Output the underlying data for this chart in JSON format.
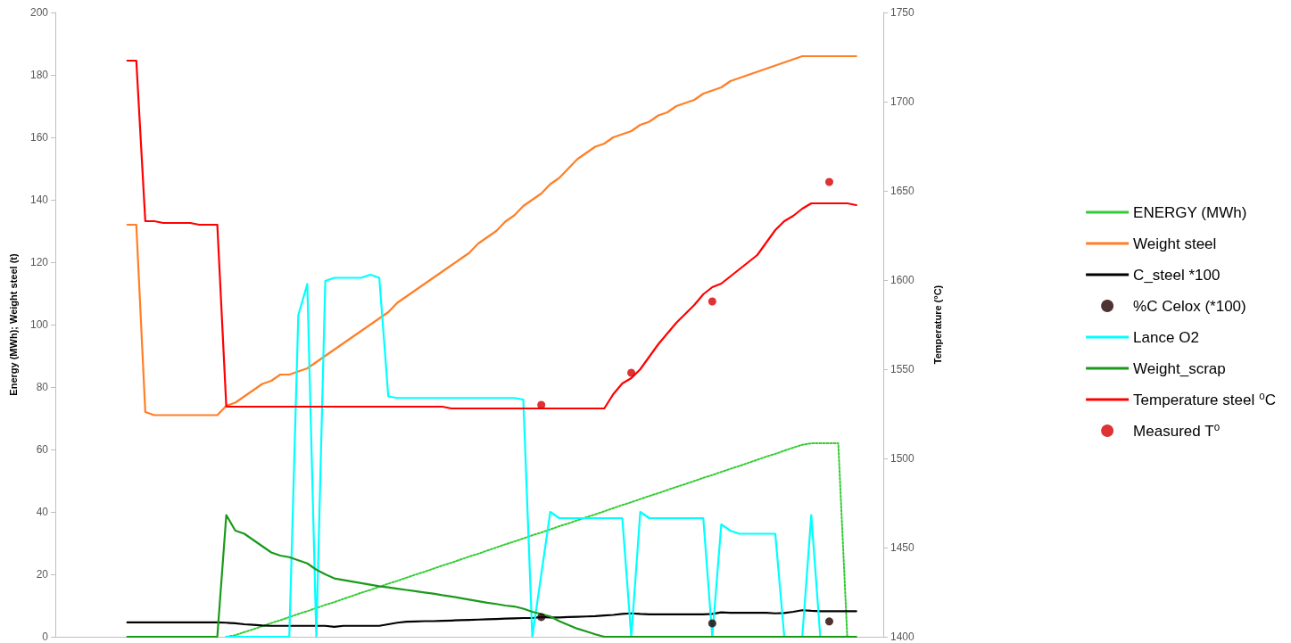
{
  "chart_data": {
    "type": "line",
    "ylabel": "Energy (MWh); Weight steel (t)",
    "y2label": "Temperature (°C)",
    "ylim": [
      0,
      200
    ],
    "yticks": [
      0,
      20,
      40,
      60,
      80,
      100,
      120,
      140,
      160,
      180,
      200
    ],
    "y2lim": [
      1400,
      1750
    ],
    "y2ticks": [
      1400,
      1450,
      1500,
      1550,
      1600,
      1650,
      1700,
      1750
    ],
    "grid": false,
    "legend": "right",
    "tick_labels": "y",
    "marker": "none",
    "categories": [
      null,
      null,
      null,
      null,
      null,
      null,
      null,
      null,
      null,
      null,
      null,
      null,
      null,
      null,
      null,
      null,
      null,
      null,
      null,
      null,
      null,
      null,
      null,
      null,
      null,
      null,
      null,
      null,
      null,
      null,
      null,
      null,
      null,
      null,
      null,
      null,
      null,
      null,
      null,
      null,
      null,
      null,
      null,
      null,
      null,
      null,
      null,
      null,
      null,
      null,
      null,
      null,
      null,
      null,
      null,
      null,
      null,
      null,
      null,
      null,
      null,
      null,
      null,
      null,
      null,
      null,
      null,
      null,
      null,
      null,
      null,
      null,
      null,
      null,
      null,
      null,
      null,
      null,
      null,
      null,
      null,
      null,
      null,
      null,
      null,
      null,
      null,
      null,
      null,
      null,
      null,
      null,
      null
    ],
    "series": [
      {
        "name": "ENERGY (MWh)",
        "line_style": "dotted",
        "color": "#33cc33",
        "values": [
          null,
          null,
          null,
          null,
          null,
          null,
          null,
          null,
          null,
          null,
          null,
          null,
          null,
          null,
          null,
          null,
          null,
          null,
          null,
          0,
          0.5,
          1.5,
          2.4,
          3.4,
          4.4,
          5.3,
          6.3,
          7.3,
          8.2,
          9.2,
          10.2,
          11.1,
          12.1,
          13.1,
          14.1,
          15,
          16,
          17,
          17.9,
          18.9,
          19.9,
          20.8,
          21.8,
          22.8,
          23.7,
          24.7,
          25.7,
          26.6,
          27.6,
          28.6,
          29.6,
          30.5,
          31.5,
          32.5,
          33.4,
          34.4,
          35.4,
          36.3,
          37.3,
          38.3,
          39.2,
          40.2,
          41.2,
          42.2,
          43.1,
          44.1,
          45.1,
          46,
          47,
          48,
          48.9,
          49.9,
          50.9,
          51.8,
          52.8,
          53.8,
          54.7,
          55.7,
          56.7,
          57.7,
          58.6,
          59.6,
          60.6,
          61.5,
          62,
          62,
          62,
          62,
          0,
          null,
          null,
          null,
          null
        ]
      },
      {
        "name": "Weight steel",
        "color": "#ff7f27",
        "values": [
          null,
          null,
          null,
          null,
          null,
          null,
          null,
          null,
          132,
          132,
          72,
          71,
          71,
          71,
          71,
          71,
          71,
          71,
          71,
          74,
          75,
          77,
          79,
          81,
          82,
          84,
          84,
          85,
          86,
          88,
          90,
          92,
          94,
          96,
          98,
          100,
          102,
          104,
          107,
          109,
          111,
          113,
          115,
          117,
          119,
          121,
          123,
          126,
          128,
          130,
          133,
          135,
          138,
          140,
          142,
          145,
          147,
          150,
          153,
          155,
          157,
          158,
          160,
          161,
          162,
          164,
          165,
          167,
          168,
          170,
          171,
          172,
          174,
          175,
          176,
          178,
          179,
          180,
          181,
          182,
          183,
          184,
          185,
          186,
          186,
          186,
          186,
          186,
          186,
          186,
          null,
          null,
          null
        ]
      },
      {
        "name": "C_steel *100",
        "color": "#000000",
        "values": [
          null,
          null,
          null,
          null,
          null,
          null,
          null,
          null,
          4.6,
          4.6,
          4.6,
          4.6,
          4.6,
          4.6,
          4.6,
          4.6,
          4.6,
          4.6,
          4.6,
          4.5,
          4.3,
          4,
          3.8,
          3.6,
          3.5,
          3.5,
          3.5,
          3.5,
          3.5,
          3.5,
          3.5,
          3.2,
          3.5,
          3.5,
          3.5,
          3.5,
          3.5,
          4,
          4.5,
          4.8,
          4.9,
          5,
          5,
          5.1,
          5.2,
          5.3,
          5.4,
          5.5,
          5.6,
          5.7,
          5.8,
          5.9,
          6,
          6,
          6.3,
          6.2,
          6.2,
          6.3,
          6.4,
          6.5,
          6.6,
          6.8,
          7,
          7.3,
          7.5,
          7.3,
          7.2,
          7.2,
          7.2,
          7.2,
          7.2,
          7.2,
          7.2,
          7.3,
          7.8,
          7.7,
          7.7,
          7.7,
          7.7,
          7.7,
          7.5,
          7.6,
          8,
          8.5,
          8.3,
          8.2,
          8.2,
          8.2,
          8.2,
          8.2,
          null,
          null,
          null
        ]
      },
      {
        "name": "%C Celox (*100)",
        "type": "scatter",
        "marker": "circle",
        "color": "#200000",
        "values": [
          null,
          null,
          null,
          null,
          null,
          null,
          null,
          null,
          null,
          null,
          null,
          null,
          null,
          null,
          null,
          null,
          null,
          null,
          null,
          null,
          null,
          null,
          null,
          null,
          null,
          null,
          null,
          null,
          null,
          null,
          null,
          null,
          null,
          null,
          null,
          null,
          null,
          null,
          null,
          null,
          null,
          null,
          null,
          null,
          null,
          null,
          null,
          null,
          null,
          null,
          null,
          null,
          null,
          null,
          6.3,
          null,
          null,
          null,
          null,
          null,
          null,
          null,
          null,
          null,
          null,
          null,
          null,
          null,
          null,
          null,
          null,
          null,
          null,
          4.3,
          null,
          null,
          null,
          null,
          null,
          null,
          null,
          null,
          null,
          null,
          null,
          null,
          4.9,
          null,
          null,
          null,
          null,
          null,
          null
        ]
      },
      {
        "name": "Lance O2",
        "color": "#00ffff",
        "values": [
          null,
          null,
          null,
          null,
          null,
          null,
          null,
          null,
          null,
          null,
          null,
          null,
          null,
          null,
          null,
          null,
          null,
          null,
          null,
          0,
          0,
          0,
          0,
          0,
          0,
          0,
          0,
          103,
          113,
          0,
          114,
          115,
          115,
          115,
          115,
          116,
          115,
          77,
          76.5,
          76.5,
          76.5,
          76.5,
          76.5,
          76.5,
          76.5,
          76.5,
          76.5,
          76.5,
          76.5,
          76.5,
          76.5,
          76.5,
          76,
          0,
          20,
          40,
          38,
          38,
          38,
          38,
          38,
          38,
          38,
          38,
          0,
          40,
          38,
          38,
          38,
          38,
          38,
          38,
          38,
          0,
          36,
          34,
          33,
          33,
          33,
          33,
          33,
          0,
          0,
          0,
          39,
          0,
          null,
          null,
          null,
          null,
          null,
          null,
          null
        ]
      },
      {
        "name": "Weight_scrap",
        "color": "#1a9a1a",
        "values": [
          null,
          null,
          null,
          null,
          null,
          null,
          null,
          null,
          0,
          0,
          0,
          0,
          0,
          0,
          0,
          0,
          0,
          0,
          0,
          39,
          34,
          33,
          31,
          29,
          27,
          26,
          25.5,
          24.5,
          23.5,
          21.5,
          20,
          18.7,
          18.2,
          17.7,
          17.2,
          16.7,
          16.2,
          15.8,
          15.4,
          15,
          14.6,
          14.2,
          13.8,
          13.3,
          12.9,
          12.4,
          11.9,
          11.4,
          10.9,
          10.5,
          10,
          9.7,
          9,
          8,
          7.3,
          6.5,
          5,
          3.8,
          2.6,
          1.7,
          0.8,
          0,
          0,
          0,
          0,
          0,
          0,
          0,
          0,
          0,
          0,
          0,
          0,
          0,
          0,
          0,
          0,
          0,
          0,
          0,
          0,
          0,
          0,
          0,
          0,
          0,
          0,
          0,
          0,
          0,
          null,
          null,
          null
        ]
      },
      {
        "name": "Temperature steel ⁰C",
        "axis": "y2",
        "color": "#ff0000",
        "values": [
          null,
          null,
          null,
          null,
          null,
          null,
          null,
          null,
          1723,
          1723,
          1633,
          1633,
          1632,
          1632,
          1632,
          1632,
          1631,
          1631,
          1631,
          1529,
          1529,
          1529,
          1529,
          1529,
          1529,
          1529,
          1529,
          1529,
          1529,
          1529,
          1529,
          1529,
          1529,
          1529,
          1529,
          1529,
          1529,
          1529,
          1529,
          1529,
          1529,
          1529,
          1529,
          1529,
          1528,
          1528,
          1528,
          1528,
          1528,
          1528,
          1528,
          1528,
          1528,
          1528,
          1528,
          1528,
          1528,
          1528,
          1528,
          1528,
          1528,
          1528,
          1536,
          1542,
          1545,
          1550,
          1557,
          1564,
          1570,
          1576,
          1581,
          1586,
          1592,
          1596,
          1598,
          1602,
          1606,
          1610,
          1614,
          1621,
          1628,
          1633,
          1636,
          1640,
          1643,
          1643,
          1643,
          1643,
          1643,
          1642,
          null,
          null,
          null
        ]
      },
      {
        "name": "Measured T⁰",
        "type": "scatter",
        "axis": "y2",
        "marker": "circle",
        "color": "#d40000",
        "values": [
          null,
          null,
          null,
          null,
          null,
          null,
          null,
          null,
          null,
          null,
          null,
          null,
          null,
          null,
          null,
          null,
          null,
          null,
          null,
          null,
          null,
          null,
          null,
          null,
          null,
          null,
          null,
          null,
          null,
          null,
          null,
          null,
          null,
          null,
          null,
          null,
          null,
          null,
          null,
          null,
          null,
          null,
          null,
          null,
          null,
          null,
          null,
          null,
          null,
          null,
          null,
          null,
          null,
          null,
          1530,
          null,
          null,
          null,
          null,
          null,
          null,
          null,
          null,
          null,
          1548,
          null,
          null,
          null,
          null,
          null,
          null,
          null,
          null,
          1588,
          null,
          null,
          null,
          null,
          null,
          null,
          null,
          null,
          null,
          null,
          null,
          null,
          1655,
          null,
          null,
          null,
          null,
          null,
          null
        ]
      }
    ]
  }
}
